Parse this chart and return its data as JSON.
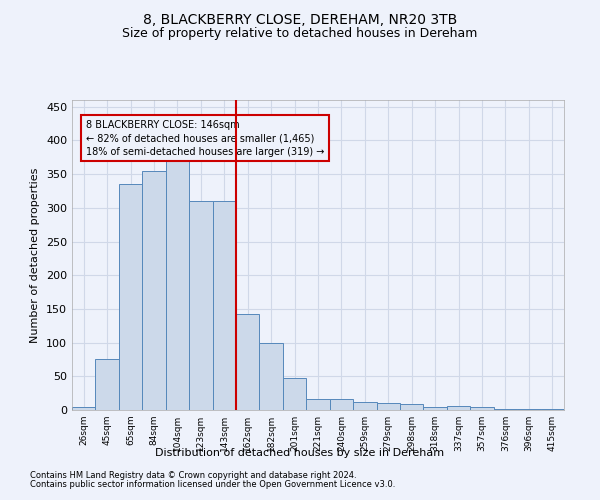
{
  "title1": "8, BLACKBERRY CLOSE, DEREHAM, NR20 3TB",
  "title2": "Size of property relative to detached houses in Dereham",
  "xlabel": "Distribution of detached houses by size in Dereham",
  "ylabel": "Number of detached properties",
  "categories": [
    "26sqm",
    "45sqm",
    "65sqm",
    "84sqm",
    "104sqm",
    "123sqm",
    "143sqm",
    "162sqm",
    "182sqm",
    "201sqm",
    "221sqm",
    "240sqm",
    "259sqm",
    "279sqm",
    "298sqm",
    "318sqm",
    "337sqm",
    "357sqm",
    "376sqm",
    "396sqm",
    "415sqm"
  ],
  "values": [
    5,
    75,
    335,
    355,
    370,
    310,
    310,
    143,
    100,
    47,
    17,
    17,
    12,
    10,
    9,
    5,
    6,
    5,
    2,
    2,
    1
  ],
  "bar_color": "#ccd9ea",
  "bar_edge_color": "#5588bb",
  "vline_color": "#cc0000",
  "annotation_box_color": "#cc0000",
  "annotation_line1": "8 BLACKBERRY CLOSE: 146sqm",
  "annotation_line2": "← 82% of detached houses are smaller (1,465)",
  "annotation_line3": "18% of semi-detached houses are larger (319) →",
  "ylim": [
    0,
    460
  ],
  "yticks": [
    0,
    50,
    100,
    150,
    200,
    250,
    300,
    350,
    400,
    450
  ],
  "footer1": "Contains HM Land Registry data © Crown copyright and database right 2024.",
  "footer2": "Contains public sector information licensed under the Open Government Licence v3.0.",
  "bg_color": "#eef2fb",
  "grid_color": "#d0d8e8",
  "title1_fontsize": 10,
  "title2_fontsize": 9,
  "xlabel_fontsize": 8,
  "ylabel_fontsize": 8
}
